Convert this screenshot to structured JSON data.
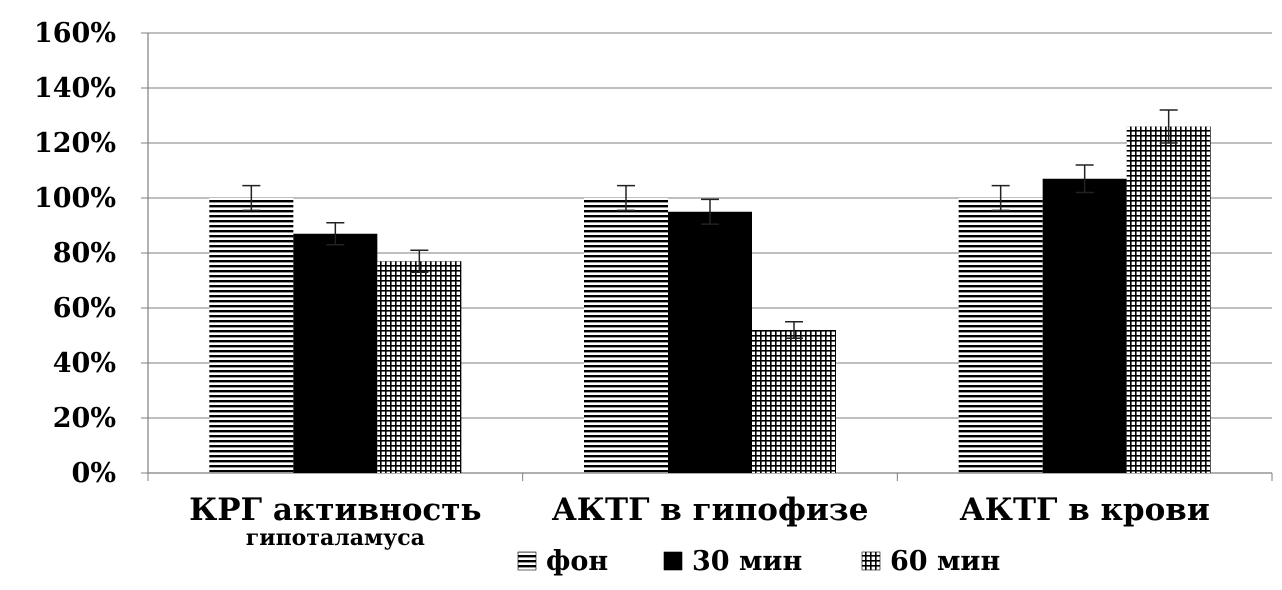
{
  "chart_data": {
    "type": "bar",
    "title": "",
    "xlabel": "",
    "ylabel": "",
    "ylim": [
      0,
      1.6
    ],
    "yticks": [
      {
        "value": 0,
        "label": "0%"
      },
      {
        "value": 0.2,
        "label": "20%"
      },
      {
        "value": 0.4,
        "label": "40%"
      },
      {
        "value": 0.6,
        "label": "60%"
      },
      {
        "value": 0.8,
        "label": "80%"
      },
      {
        "value": 1.0,
        "label": "100%"
      },
      {
        "value": 1.2,
        "label": "120%"
      },
      {
        "value": 1.4,
        "label": "140%"
      },
      {
        "value": 1.6,
        "label": "160%"
      }
    ],
    "categories": [
      [
        "КРГ активность",
        "гипоталамуса"
      ],
      [
        "АКТГ в гипофизе"
      ],
      [
        "АКТГ в крови"
      ]
    ],
    "series": [
      {
        "name": "фон",
        "pattern": "horizontal-lines",
        "color": "#000000",
        "values": [
          1.0,
          1.0,
          1.0
        ],
        "errors": [
          0.045,
          0.045,
          0.045
        ]
      },
      {
        "name": "30 мин",
        "pattern": "solid",
        "color": "#000000",
        "values": [
          0.87,
          0.95,
          1.07
        ],
        "errors": [
          0.04,
          0.045,
          0.05
        ]
      },
      {
        "name": "60 мин",
        "pattern": "grid",
        "color": "#000000",
        "values": [
          0.77,
          0.52,
          1.26
        ],
        "errors": [
          0.04,
          0.03,
          0.06
        ]
      }
    ],
    "grid": true,
    "legend_position": "bottom"
  }
}
